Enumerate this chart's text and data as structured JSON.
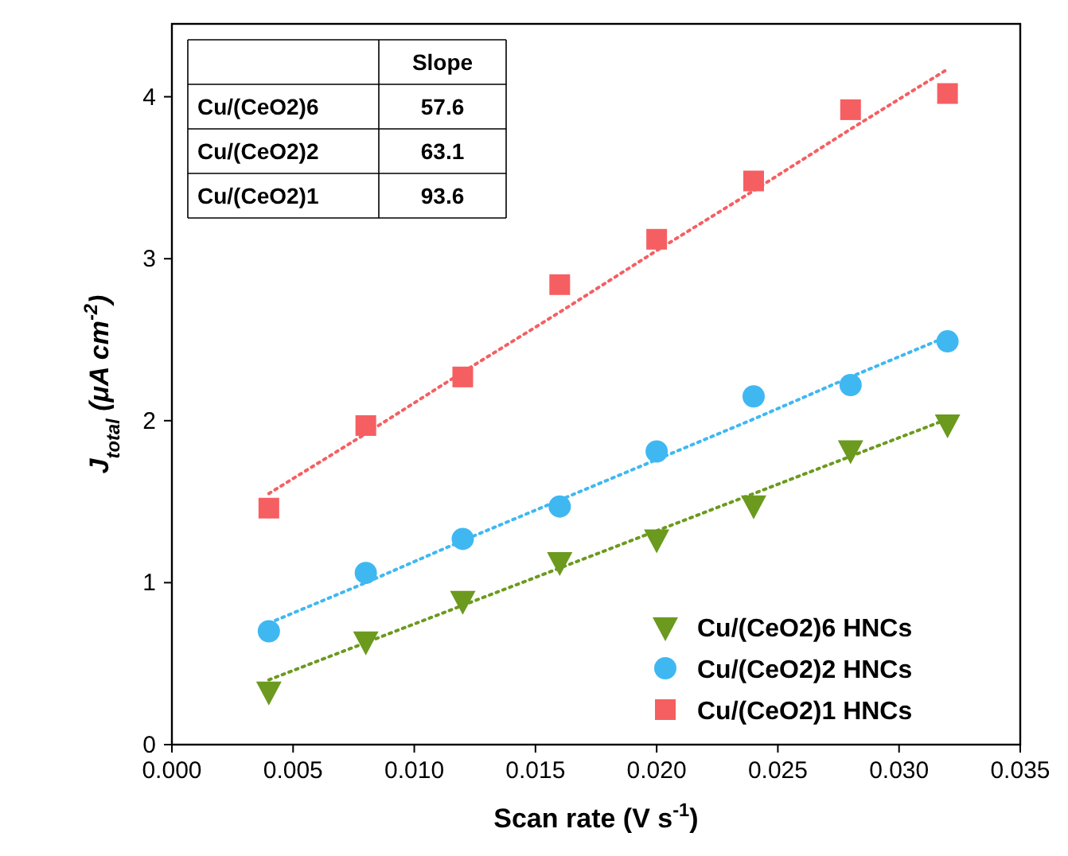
{
  "chart_data": {
    "type": "scatter",
    "xlabel": "Scan rate (V s$^{-1}$)",
    "ylabel": "J$_{total}$  (μA cm$^{-2}$)",
    "x": [
      0.004,
      0.008,
      0.012,
      0.016,
      0.02,
      0.024,
      0.028,
      0.032
    ],
    "xlim": [
      0,
      0.035
    ],
    "xticks": [
      {
        "value": 0,
        "label": "0.000"
      },
      {
        "value": 0.005,
        "label": "0.005"
      },
      {
        "value": 0.01,
        "label": "0.010"
      },
      {
        "value": 0.015,
        "label": "0.015"
      },
      {
        "value": 0.02,
        "label": "0.020"
      },
      {
        "value": 0.025,
        "label": "0.025"
      },
      {
        "value": 0.03,
        "label": "0.030"
      },
      {
        "value": 0.035,
        "label": "0.035"
      }
    ],
    "ylim": [
      0,
      4.45
    ],
    "yticks": [
      0,
      1,
      2,
      3,
      4
    ],
    "grid": false,
    "legend": "bottom right",
    "series": [
      {
        "name": "Cu/(CeO2)6 HNCs",
        "color": "#6b9a1e",
        "marker": "triangle",
        "values": [
          0.33,
          0.64,
          0.89,
          1.13,
          1.27,
          1.48,
          1.82,
          1.98
        ]
      },
      {
        "name": "Cu/(CeO2)2 HNCs",
        "color": "#3fb8f2",
        "marker": "circle",
        "values": [
          0.7,
          1.06,
          1.27,
          1.47,
          1.81,
          2.15,
          2.22,
          2.49
        ]
      },
      {
        "name": "Cu/(CeO2)1 HNCs",
        "color": "#f55f62",
        "marker": "square",
        "values": [
          1.46,
          1.97,
          2.27,
          2.84,
          3.12,
          3.48,
          3.92,
          4.02
        ]
      },
      {
        "type": "line",
        "color": "#6b9a1e",
        "line_style": "dotted",
        "values": [
          0.4,
          0.63,
          0.86,
          1.09,
          1.32,
          1.55,
          1.78,
          2.01
        ]
      },
      {
        "type": "line",
        "color": "#3fb8f2",
        "line_style": "dotted",
        "values": [
          0.75,
          1.0,
          1.26,
          1.51,
          1.76,
          2.01,
          2.27,
          2.52
        ]
      },
      {
        "type": "line",
        "color": "#f55f62",
        "line_style": "dotted",
        "values": [
          1.55,
          1.92,
          2.3,
          2.67,
          3.05,
          3.42,
          3.8,
          4.17
        ]
      }
    ],
    "annotations": [
      "Slope",
      "Cu/(CeO2)6",
      "57.6",
      "Cu/(CeO2)2",
      "63.1",
      "Cu/(CeO2)1",
      "93.6"
    ]
  }
}
